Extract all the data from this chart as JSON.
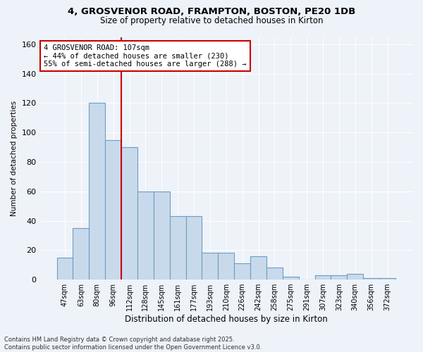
{
  "title_line1": "4, GROSVENOR ROAD, FRAMPTON, BOSTON, PE20 1DB",
  "title_line2": "Size of property relative to detached houses in Kirton",
  "xlabel": "Distribution of detached houses by size in Kirton",
  "ylabel": "Number of detached properties",
  "categories": [
    "47sqm",
    "63sqm",
    "80sqm",
    "96sqm",
    "112sqm",
    "128sqm",
    "145sqm",
    "161sqm",
    "177sqm",
    "193sqm",
    "210sqm",
    "226sqm",
    "242sqm",
    "258sqm",
    "275sqm",
    "291sqm",
    "307sqm",
    "323sqm",
    "340sqm",
    "356sqm",
    "372sqm"
  ],
  "values": [
    15,
    35,
    120,
    95,
    90,
    60,
    60,
    43,
    43,
    18,
    18,
    11,
    16,
    8,
    2,
    0,
    3,
    3,
    4,
    1,
    1
  ],
  "bar_color": "#c9d9ec",
  "bar_edge_color": "#6a9fc0",
  "ref_line_x": 3.5,
  "ref_line_color": "#cc0000",
  "annotation_text": "4 GROSVENOR ROAD: 107sqm\n← 44% of detached houses are smaller (230)\n55% of semi-detached houses are larger (288) →",
  "annotation_box_color": "#ffffff",
  "annotation_box_edge": "#cc0000",
  "ylim": [
    0,
    165
  ],
  "yticks": [
    0,
    20,
    40,
    60,
    80,
    100,
    120,
    140,
    160
  ],
  "footer_line1": "Contains HM Land Registry data © Crown copyright and database right 2025.",
  "footer_line2": "Contains public sector information licensed under the Open Government Licence v3.0.",
  "background_color": "#eef2f9",
  "grid_color": "#ffffff"
}
